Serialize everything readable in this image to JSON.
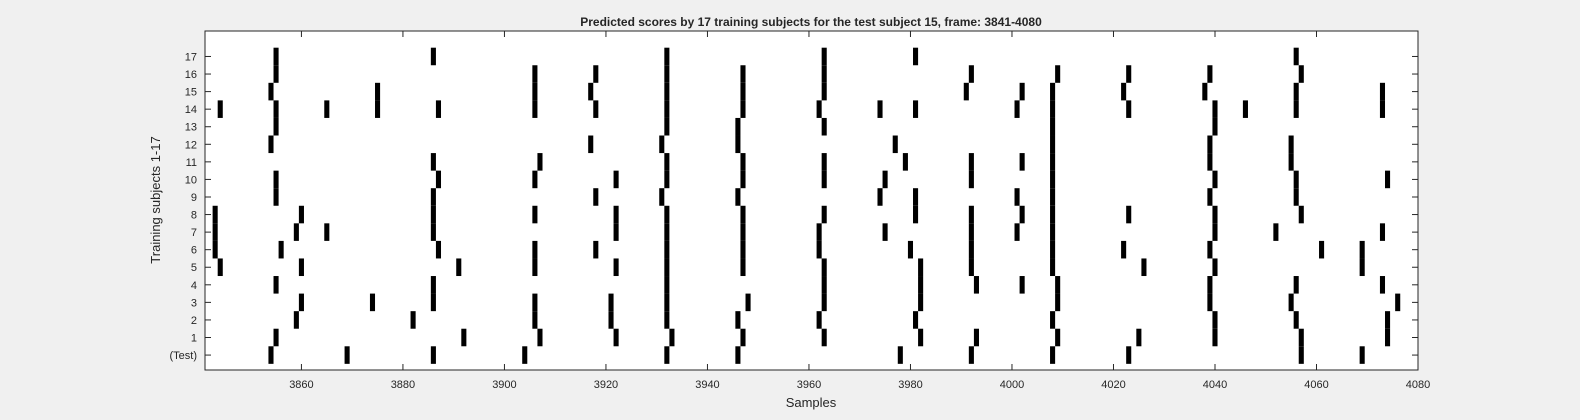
{
  "chart_data": {
    "type": "scatter",
    "title": "Predicted scores by 17 training subjects for the test subject 15, frame: 3841-4080",
    "xlabel": "Samples",
    "ylabel": "Training subjects 1-17",
    "xlim": [
      3841,
      4080
    ],
    "xticks": [
      3860,
      3880,
      3900,
      3920,
      3940,
      3960,
      3980,
      4000,
      4020,
      4040,
      4060,
      4080
    ],
    "yticks": [
      {
        "row": 0,
        "label": "(Test)"
      },
      {
        "row": 1,
        "label": "1"
      },
      {
        "row": 2,
        "label": "2"
      },
      {
        "row": 3,
        "label": "3"
      },
      {
        "row": 4,
        "label": "4"
      },
      {
        "row": 5,
        "label": "5"
      },
      {
        "row": 6,
        "label": "6"
      },
      {
        "row": 7,
        "label": "7"
      },
      {
        "row": 8,
        "label": "8"
      },
      {
        "row": 9,
        "label": "9"
      },
      {
        "row": 10,
        "label": "10"
      },
      {
        "row": 11,
        "label": "11"
      },
      {
        "row": 12,
        "label": "12"
      },
      {
        "row": 13,
        "label": "13"
      },
      {
        "row": 14,
        "label": "14"
      },
      {
        "row": 15,
        "label": "15"
      },
      {
        "row": 16,
        "label": "16"
      },
      {
        "row": 17,
        "label": "17"
      }
    ],
    "grid": false,
    "mark_color": "#000000",
    "background_color": "#ffffff",
    "rows": [
      {
        "row": 0,
        "x": [
          3854,
          3869,
          3886,
          3904,
          3932,
          3946,
          3978,
          3992,
          4008,
          4023,
          4057,
          4069
        ]
      },
      {
        "row": 1,
        "x": [
          3855,
          3892,
          3907,
          3922,
          3933,
          3947,
          3963,
          3982,
          3993,
          4009,
          4025,
          4040,
          4057,
          4074
        ]
      },
      {
        "row": 2,
        "x": [
          3859,
          3882,
          3906,
          3921,
          3932,
          3946,
          3962,
          3981,
          4008,
          4040,
          4056,
          4074
        ]
      },
      {
        "row": 3,
        "x": [
          3860,
          3874,
          3886,
          3906,
          3921,
          3932,
          3948,
          3963,
          3982,
          4009,
          4039,
          4055,
          4076
        ]
      },
      {
        "row": 4,
        "x": [
          3855,
          3886,
          3932,
          3963,
          3982,
          3993,
          4002,
          4009,
          4039,
          4056,
          4073
        ]
      },
      {
        "row": 5,
        "x": [
          3844,
          3860,
          3891,
          3906,
          3922,
          3932,
          3947,
          3963,
          3982,
          3992,
          4008,
          4026,
          4040,
          4069
        ]
      },
      {
        "row": 6,
        "x": [
          3843,
          3856,
          3887,
          3906,
          3918,
          3932,
          3947,
          3962,
          3980,
          3992,
          4008,
          4022,
          4039,
          4061,
          4069
        ]
      },
      {
        "row": 7,
        "x": [
          3843,
          3859,
          3865,
          3886,
          3922,
          3932,
          3947,
          3962,
          3975,
          3992,
          4001,
          4008,
          4040,
          4052,
          4073
        ]
      },
      {
        "row": 8,
        "x": [
          3843,
          3860,
          3886,
          3906,
          3922,
          3932,
          3947,
          3963,
          3981,
          3992,
          4002,
          4008,
          4023,
          4040,
          4057
        ]
      },
      {
        "row": 9,
        "x": [
          3855,
          3886,
          3918,
          3931,
          3946,
          3974,
          3981,
          4001,
          4008,
          4039,
          4056
        ]
      },
      {
        "row": 10,
        "x": [
          3855,
          3887,
          3906,
          3922,
          3932,
          3947,
          3963,
          3975,
          3992,
          4008,
          4040,
          4056,
          4074
        ]
      },
      {
        "row": 11,
        "x": [
          3886,
          3907,
          3932,
          3947,
          3963,
          3979,
          3992,
          4002,
          4008,
          4039,
          4055
        ]
      },
      {
        "row": 12,
        "x": [
          3854,
          3917,
          3931,
          3946,
          3977,
          4008,
          4039,
          4055
        ]
      },
      {
        "row": 13,
        "x": [
          3855,
          3932,
          3946,
          3963,
          4008,
          4040
        ]
      },
      {
        "row": 14,
        "x": [
          3844,
          3855,
          3865,
          3875,
          3887,
          3906,
          3918,
          3932,
          3947,
          3962,
          3974,
          3981,
          4001,
          4008,
          4023,
          4040,
          4046,
          4056,
          4073
        ]
      },
      {
        "row": 15,
        "x": [
          3854,
          3875,
          3906,
          3917,
          3932,
          3947,
          3963,
          3991,
          4002,
          4008,
          4022,
          4038,
          4056,
          4073
        ]
      },
      {
        "row": 16,
        "x": [
          3855,
          3906,
          3918,
          3932,
          3947,
          3963,
          3992,
          4009,
          4023,
          4039,
          4057
        ]
      },
      {
        "row": 17,
        "x": [
          3855,
          3886,
          3932,
          3963,
          3981,
          4056
        ]
      }
    ]
  }
}
